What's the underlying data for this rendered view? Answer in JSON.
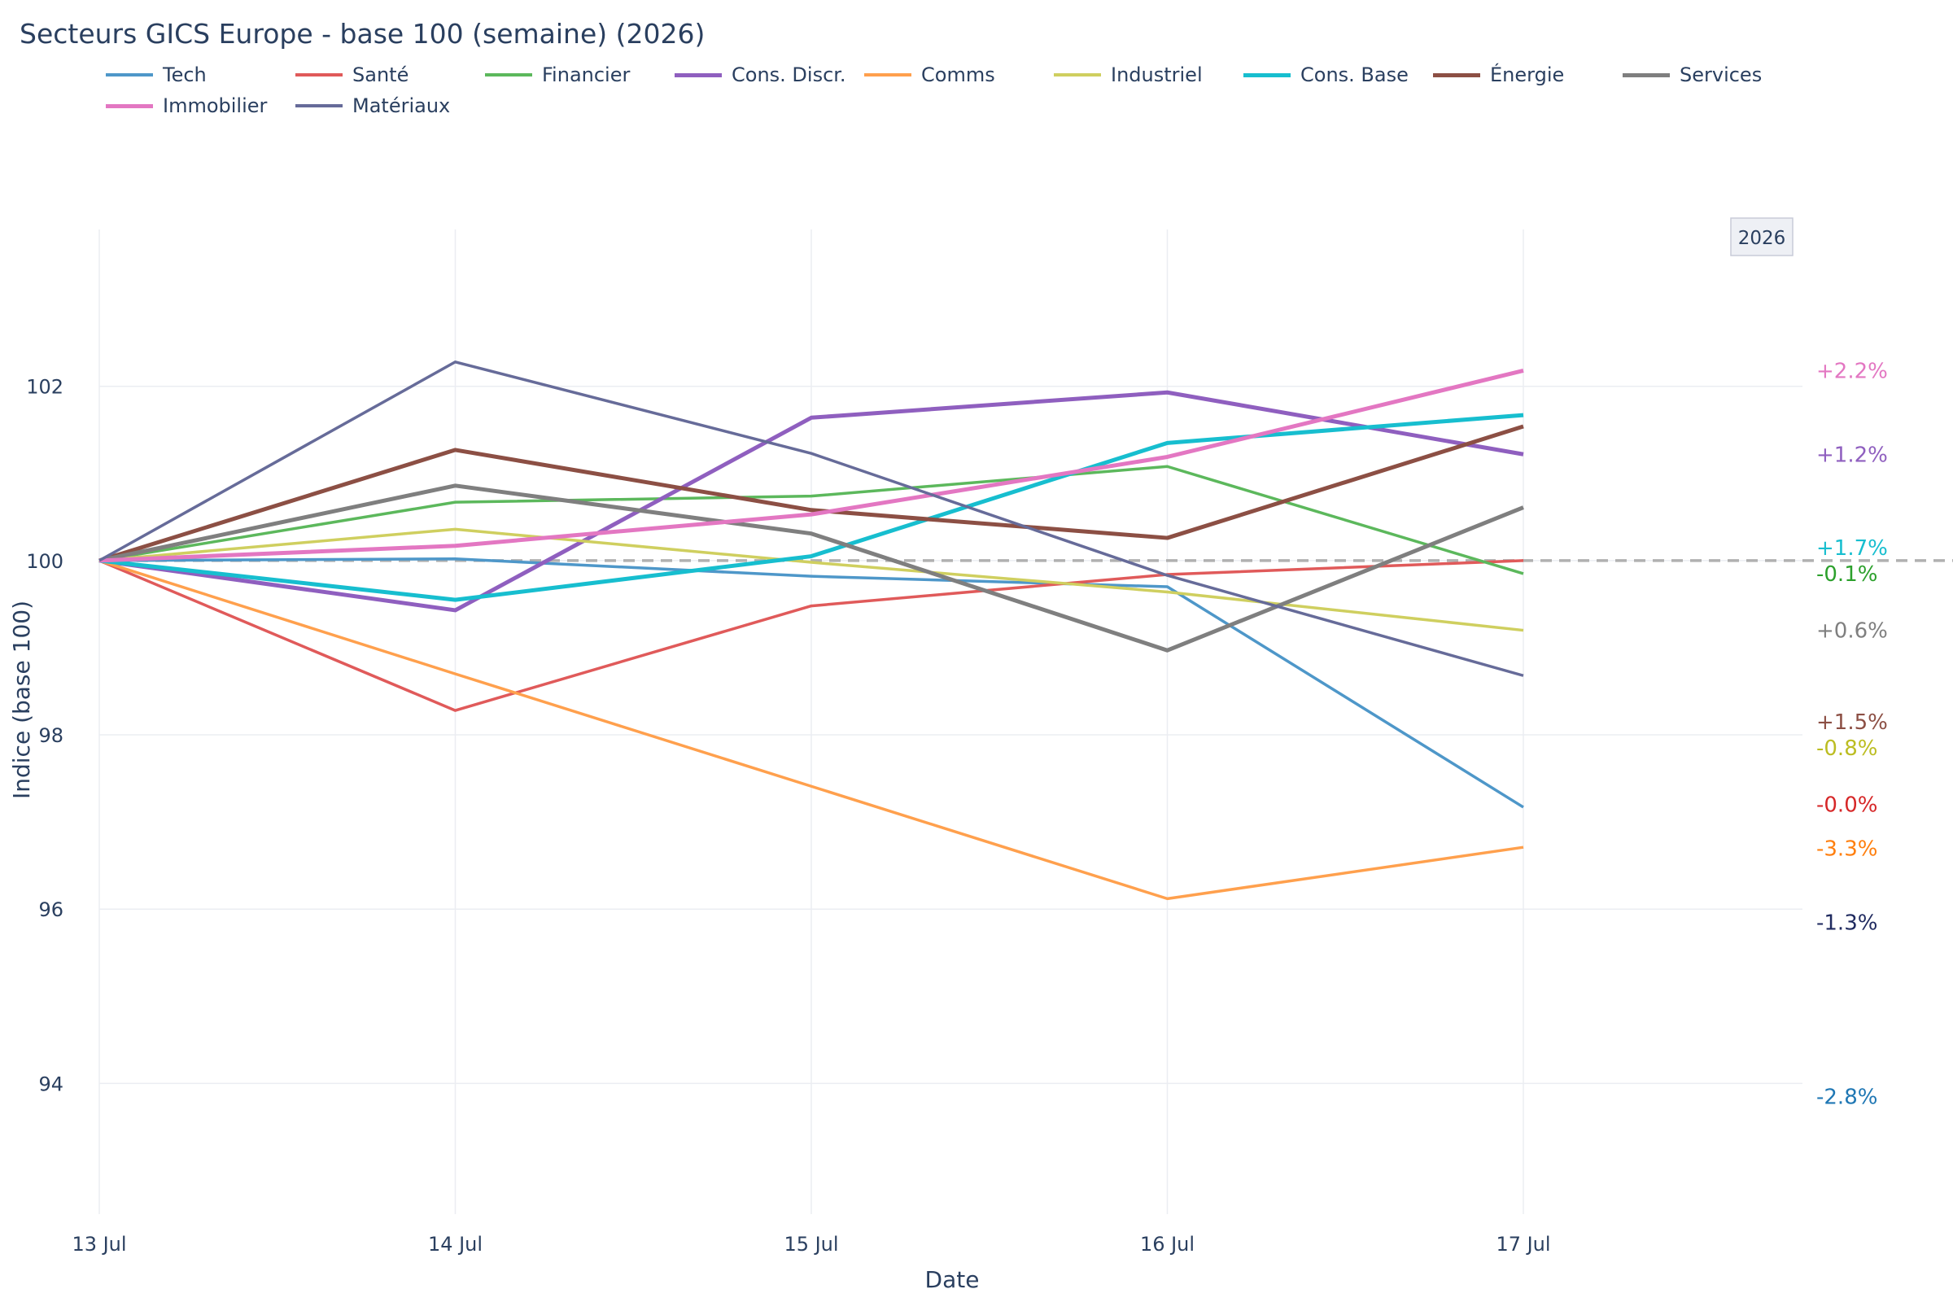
{
  "title": "Secteurs GICS Europe - base 100 (semaine) (2026)",
  "chart_data": {
    "type": "line",
    "title": "Secteurs GICS Europe - base 100 (semaine) (2026)",
    "xlabel": "Date",
    "ylabel": "Indice (base 100)",
    "x": [
      "13 Jul",
      "14 Jul",
      "15 Jul",
      "16 Jul",
      "17 Jul"
    ],
    "ylim": [
      92.5,
      103.8
    ],
    "yticks": [
      94,
      96,
      98,
      100,
      102
    ],
    "reference_line": 100,
    "grid": true,
    "legend_position": "top",
    "annotation": "2026",
    "series": [
      {
        "name": "Tech",
        "color": "#4e97c9",
        "values": [
          100,
          100.02,
          99.82,
          99.7,
          97.17
        ]
      },
      {
        "name": "Santé",
        "color": "#e05a5a",
        "values": [
          100,
          98.28,
          99.48,
          99.84,
          100.0
        ]
      },
      {
        "name": "Financier",
        "color": "#5cb85c",
        "values": [
          100,
          100.67,
          100.74,
          101.08,
          99.85
        ]
      },
      {
        "name": "Cons. Discr.",
        "color": "#8f5fbf",
        "values": [
          100,
          99.43,
          101.64,
          101.93,
          101.22
        ]
      },
      {
        "name": "Comms",
        "color": "#ffa04d",
        "values": [
          100,
          98.7,
          97.41,
          96.12,
          96.71
        ]
      },
      {
        "name": "Industriel",
        "color": "#cfcf5f",
        "values": [
          100,
          100.36,
          99.98,
          99.64,
          99.2
        ]
      },
      {
        "name": "Cons. Base",
        "color": "#17becf",
        "values": [
          100,
          99.55,
          100.05,
          101.35,
          101.67
        ]
      },
      {
        "name": "Énergie",
        "color": "#8c4f44",
        "values": [
          100,
          101.27,
          100.58,
          100.26,
          101.54
        ]
      },
      {
        "name": "Services",
        "color": "#7f7f7f",
        "values": [
          100,
          100.86,
          100.31,
          98.97,
          100.61
        ]
      },
      {
        "name": "Immobilier",
        "color": "#e377c2",
        "values": [
          100,
          100.17,
          100.53,
          101.19,
          102.18
        ]
      },
      {
        "name": "Matériaux",
        "color": "#666b99",
        "values": [
          100,
          102.28,
          101.23,
          99.83,
          98.68
        ]
      }
    ],
    "end_labels": [
      {
        "text": "+2.2%",
        "color": "#e377c2",
        "y": 102.18
      },
      {
        "text": "+1.2%",
        "color": "#8f5fbf",
        "y": 101.22
      },
      {
        "text": "+1.7%",
        "color": "#17becf",
        "y": 100.15
      },
      {
        "text": "-0.1%",
        "color": "#2ca02c",
        "y": 99.85
      },
      {
        "text": "+0.6%",
        "color": "#7f7f7f",
        "y": 99.2
      },
      {
        "text": "+1.5%",
        "color": "#8c4f44",
        "y": 98.15
      },
      {
        "text": "-0.8%",
        "color": "#bcbd22",
        "y": 97.85
      },
      {
        "text": "-0.0%",
        "color": "#d62728",
        "y": 97.2
      },
      {
        "text": "-3.3%",
        "color": "#ff7f0e",
        "y": 96.7
      },
      {
        "text": "-1.3%",
        "color": "#1f2a5f",
        "y": 95.85
      },
      {
        "text": "-2.8%",
        "color": "#1f77b4",
        "y": 93.85
      }
    ]
  }
}
